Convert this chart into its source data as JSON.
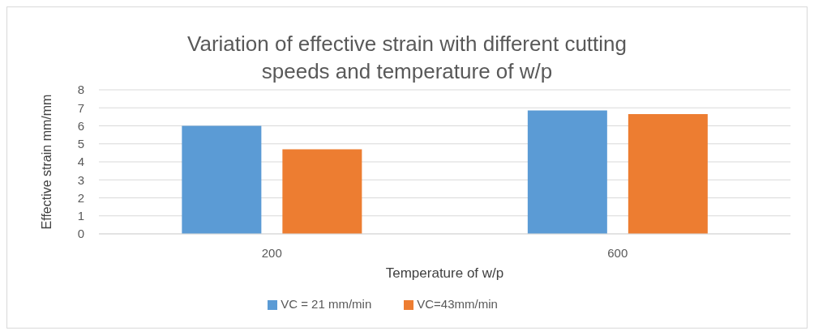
{
  "chart_data": {
    "type": "bar",
    "title": "Variation of effective strain with different cutting speeds and temperature of w/p",
    "xlabel": "Temperature of w/p",
    "ylabel": "Effective strain mm/mm",
    "categories": [
      "200",
      "600"
    ],
    "series": [
      {
        "name": "VC = 21 mm/min",
        "color": "#5b9bd5",
        "values": [
          6.0,
          6.85
        ]
      },
      {
        "name": "VC=43mm/min",
        "color": "#ed7d31",
        "values": [
          4.7,
          6.65
        ]
      }
    ],
    "ylim": [
      0,
      8
    ],
    "yticks": [
      0,
      1,
      2,
      3,
      4,
      5,
      6,
      7,
      8
    ],
    "grid": "y",
    "legend": "bottom"
  }
}
